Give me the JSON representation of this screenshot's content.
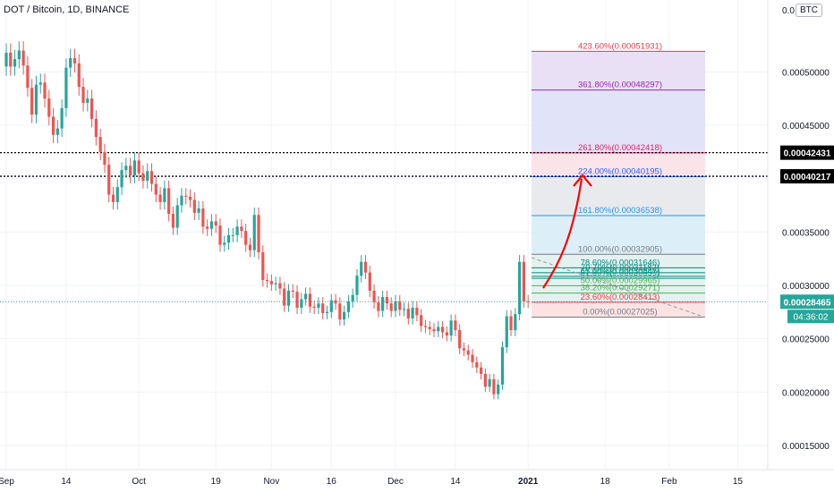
{
  "header": {
    "title": "DOT / Bitcoin, 1D, BINANCE",
    "currency_badge": "BTC"
  },
  "chart_data": {
    "type": "candlestick",
    "title": "DOT / Bitcoin, 1D, BINANCE",
    "ylim": [
      0.00014,
      0.00054
    ],
    "y_ticks": [
      "0.00015000",
      "0.00020000",
      "0.00025000",
      "0.00030000",
      "0.00035000",
      "0.00040000",
      "0.00045000",
      "0.00050000"
    ],
    "y_tick_values": [
      0.00015,
      0.0002,
      0.00025,
      0.0003,
      0.00035,
      0.0004,
      0.00045,
      0.0005
    ],
    "y_top_clipped_label": "0.0",
    "x_ticks": [
      "Sep",
      "14",
      "Oct",
      "19",
      "Nov",
      "16",
      "Dec",
      "14",
      "2021",
      "18",
      "Feb",
      "15"
    ],
    "x_tick_index": [
      0,
      14,
      31,
      49,
      62,
      76,
      91,
      105,
      122,
      140,
      155,
      171
    ],
    "colors": {
      "up": "#26a69a",
      "down": "#ef5350",
      "arrow": "#ff0000"
    },
    "closes": [
      0.000518,
      0.000505,
      0.000512,
      0.00052,
      0.000506,
      0.000485,
      0.00046,
      0.000488,
      0.00049,
      0.000475,
      0.000458,
      0.000441,
      0.000447,
      0.000466,
      0.000504,
      0.000513,
      0.000508,
      0.000486,
      0.000471,
      0.000475,
      0.000456,
      0.000439,
      0.000425,
      0.000413,
      0.000385,
      0.000378,
      0.000392,
      0.000408,
      0.000412,
      0.000403,
      0.000417,
      0.000405,
      0.000398,
      0.000407,
      0.000395,
      0.000385,
      0.000378,
      0.000391,
      0.000367,
      0.000354,
      0.000375,
      0.000384,
      0.000383,
      0.00038,
      0.000368,
      0.000372,
      0.000355,
      0.000353,
      0.00036,
      0.000356,
      0.000338,
      0.00034,
      0.000347,
      0.000347,
      0.000355,
      0.000351,
      0.000338,
      0.000333,
      0.000366,
      0.000331,
      0.000305,
      0.000304,
      0.000301,
      0.000302,
      0.000297,
      0.000281,
      0.000295,
      0.000294,
      0.000279,
      0.000287,
      0.000292,
      0.00028,
      0.000279,
      0.000283,
      0.000274,
      0.000275,
      0.000286,
      0.000283,
      0.000268,
      0.000275,
      0.000285,
      0.000291,
      0.000309,
      0.000322,
      0.000312,
      0.000295,
      0.000284,
      0.000276,
      0.000289,
      0.000283,
      0.000276,
      0.000285,
      0.000277,
      0.000278,
      0.000269,
      0.000279,
      0.000272,
      0.000262,
      0.000261,
      0.000259,
      0.000257,
      0.000261,
      0.000256,
      0.000253,
      0.000267,
      0.000258,
      0.000241,
      0.000239,
      0.000235,
      0.000228,
      0.000223,
      0.000217,
      0.000205,
      0.000212,
      0.000198,
      0.000207,
      0.000242,
      0.000271,
      0.000258,
      0.000273,
      0.000322,
      0.000285,
      0.00028465
    ],
    "fibonacci": {
      "levels": [
        {
          "label": "423.60%(0.00051931)",
          "price": 0.00051931,
          "color": "#f23645"
        },
        {
          "label": "361.80%(0.00048297)",
          "price": 0.00048297,
          "color": "#9c27b0"
        },
        {
          "label": "261.80%(0.00042418)",
          "price": 0.00042418,
          "color": "#e91e63"
        },
        {
          "label": "224.00%(0.00040195)",
          "price": 0.00040195,
          "color": "#2962ff"
        },
        {
          "label": "161.80%(0.00036538)",
          "price": 0.00036538,
          "color": "#2196f3"
        },
        {
          "label": "100.00%(0.00032905)",
          "price": 0.00032905,
          "color": "#787b86"
        },
        {
          "label": "78.60%(0.00031646)",
          "price": 0.00031646,
          "color": "#00897b"
        },
        {
          "label": "70.70%(0.00031182)",
          "price": 0.00031182,
          "color": "#00897b"
        },
        {
          "label": "65.00%(0.00030847)",
          "price": 0.00030847,
          "color": "#00897b"
        },
        {
          "label": "61.80%(0.00030659)",
          "price": 0.00030659,
          "color": "#089981"
        },
        {
          "label": "50.00%(0.00029965)",
          "price": 0.00029965,
          "color": "#4caf50"
        },
        {
          "label": "38.20%(0.00029271)",
          "price": 0.00029271,
          "color": "#4caf50"
        },
        {
          "label": "23.60%(0.00028413)",
          "price": 0.00028413,
          "color": "#f23645"
        },
        {
          "label": "0.00%(0.00027025)",
          "price": 0.00027025,
          "color": "#787b86"
        }
      ]
    },
    "horizontal_lines": [
      {
        "label": "0.00042431",
        "price": 0.00042431,
        "color": "#000000"
      },
      {
        "label": "0.00040217",
        "price": 0.00040217,
        "color": "#000000"
      }
    ],
    "current_price": {
      "label": "0.00028465",
      "price": 0.00028465,
      "color": "#26a69a",
      "countdown": "04:36:02"
    }
  }
}
